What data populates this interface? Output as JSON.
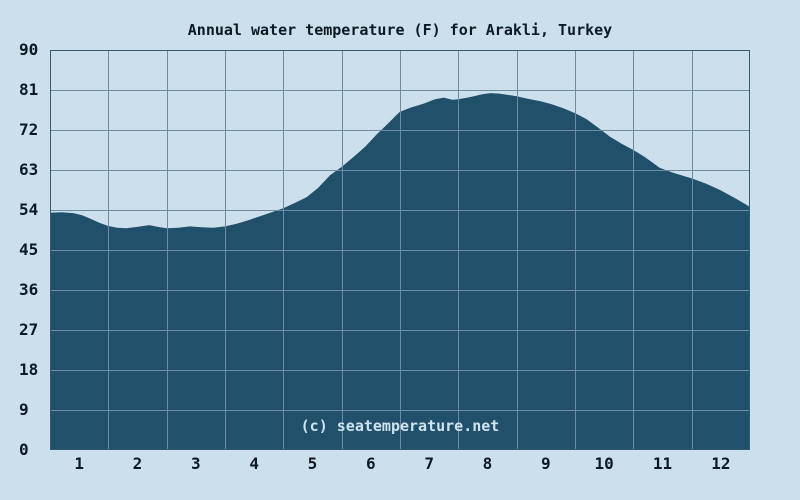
{
  "chart_data": {
    "type": "area",
    "title": "Annual water temperature (F) for Arakli, Turkey",
    "watermark": "(c) seatemperature.net",
    "xlabel": "",
    "ylabel": "",
    "categories": [
      "1",
      "2",
      "3",
      "4",
      "5",
      "6",
      "7",
      "8",
      "9",
      "10",
      "11",
      "12"
    ],
    "values": [
      53.0,
      50.2,
      50.2,
      52.1,
      58.0,
      69.5,
      78.6,
      80.2,
      78.1,
      71.5,
      63.4,
      58.4
    ],
    "series_name": "Water temperature (F)",
    "ylim": [
      0,
      90
    ],
    "yticks": [
      0,
      9,
      18,
      27,
      36,
      45,
      54,
      63,
      72,
      81,
      90
    ],
    "grid": "on",
    "legend": "none",
    "curve_points": [
      [
        0.0,
        53.4
      ],
      [
        0.2,
        53.5
      ],
      [
        0.4,
        53.3
      ],
      [
        0.55,
        52.8
      ],
      [
        0.7,
        52.0
      ],
      [
        0.85,
        51.1
      ],
      [
        1.0,
        50.4
      ],
      [
        1.15,
        50.0
      ],
      [
        1.3,
        49.9
      ],
      [
        1.5,
        50.2
      ],
      [
        1.7,
        50.6
      ],
      [
        1.85,
        50.2
      ],
      [
        2.0,
        49.9
      ],
      [
        2.2,
        50.0
      ],
      [
        2.4,
        50.3
      ],
      [
        2.6,
        50.1
      ],
      [
        2.8,
        50.0
      ],
      [
        3.0,
        50.3
      ],
      [
        3.2,
        50.9
      ],
      [
        3.4,
        51.7
      ],
      [
        3.6,
        52.6
      ],
      [
        3.8,
        53.5
      ],
      [
        4.0,
        54.4
      ],
      [
        4.2,
        55.6
      ],
      [
        4.4,
        56.9
      ],
      [
        4.6,
        59.0
      ],
      [
        4.8,
        61.8
      ],
      [
        5.0,
        63.7
      ],
      [
        5.2,
        65.9
      ],
      [
        5.4,
        68.2
      ],
      [
        5.6,
        71.0
      ],
      [
        5.8,
        73.5
      ],
      [
        5.95,
        75.5
      ],
      [
        6.0,
        76.1
      ],
      [
        6.2,
        77.1
      ],
      [
        6.4,
        77.9
      ],
      [
        6.6,
        78.9
      ],
      [
        6.75,
        79.3
      ],
      [
        6.9,
        78.8
      ],
      [
        7.0,
        78.9
      ],
      [
        7.2,
        79.4
      ],
      [
        7.4,
        80.0
      ],
      [
        7.55,
        80.3
      ],
      [
        7.7,
        80.2
      ],
      [
        7.85,
        79.9
      ],
      [
        8.0,
        79.6
      ],
      [
        8.2,
        79.0
      ],
      [
        8.4,
        78.5
      ],
      [
        8.6,
        77.8
      ],
      [
        8.8,
        76.9
      ],
      [
        9.0,
        75.8
      ],
      [
        9.2,
        74.4
      ],
      [
        9.4,
        72.5
      ],
      [
        9.6,
        70.5
      ],
      [
        9.8,
        68.9
      ],
      [
        10.0,
        67.5
      ],
      [
        10.2,
        65.9
      ],
      [
        10.45,
        63.5
      ],
      [
        10.7,
        62.3
      ],
      [
        11.0,
        61.1
      ],
      [
        11.25,
        59.9
      ],
      [
        11.5,
        58.4
      ],
      [
        11.75,
        56.6
      ],
      [
        12.0,
        54.7
      ]
    ],
    "colors": {
      "background": "#cbdfec",
      "area_fill": "#21506b",
      "grid": "#6d8ca0",
      "border": "#35596f",
      "text": "#0d1a24",
      "watermark_text": "#cfe3f0"
    }
  }
}
